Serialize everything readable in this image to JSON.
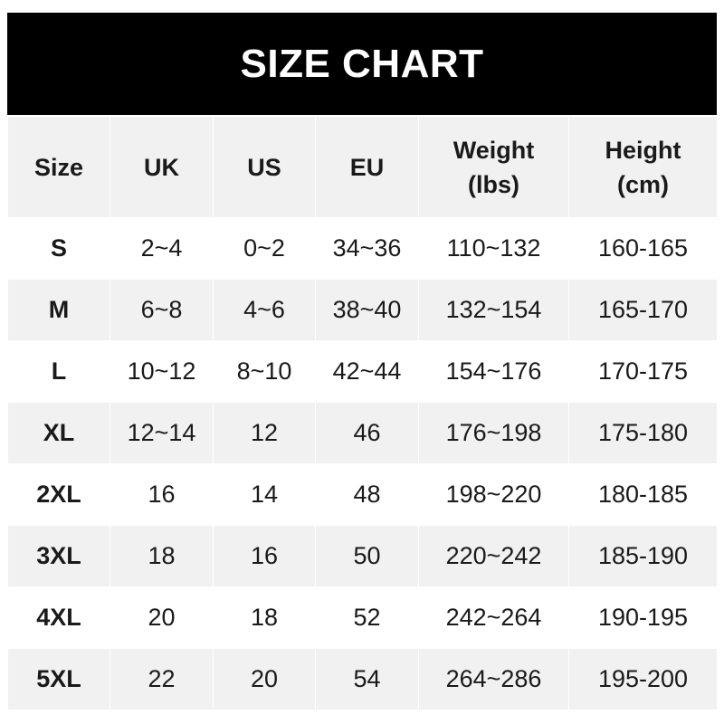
{
  "title": "SIZE CHART",
  "colors": {
    "title_bg": "#000000",
    "title_text": "#ffffff",
    "alt_row_bg": "#f1f1f1",
    "row_bg": "#ffffff"
  },
  "chart_data": {
    "type": "table",
    "title": "SIZE CHART",
    "columns": [
      "Size",
      "UK",
      "US",
      "EU",
      "Weight (lbs)",
      "Height (cm)"
    ],
    "header_lines": [
      [
        "Size"
      ],
      [
        "UK"
      ],
      [
        "US"
      ],
      [
        "EU"
      ],
      [
        "Weight",
        "(lbs)"
      ],
      [
        "Height",
        "(cm)"
      ]
    ],
    "rows": [
      [
        "S",
        "2~4",
        "0~2",
        "34~36",
        "110~132",
        "160-165"
      ],
      [
        "M",
        "6~8",
        "4~6",
        "38~40",
        "132~154",
        "165-170"
      ],
      [
        "L",
        "10~12",
        "8~10",
        "42~44",
        "154~176",
        "170-175"
      ],
      [
        "XL",
        "12~14",
        "12",
        "46",
        "176~198",
        "175-180"
      ],
      [
        "2XL",
        "16",
        "14",
        "48",
        "198~220",
        "180-185"
      ],
      [
        "3XL",
        "18",
        "16",
        "50",
        "220~242",
        "185-190"
      ],
      [
        "4XL",
        "20",
        "18",
        "52",
        "242~264",
        "190-195"
      ],
      [
        "5XL",
        "22",
        "20",
        "54",
        "264~286",
        "195-200"
      ]
    ]
  }
}
